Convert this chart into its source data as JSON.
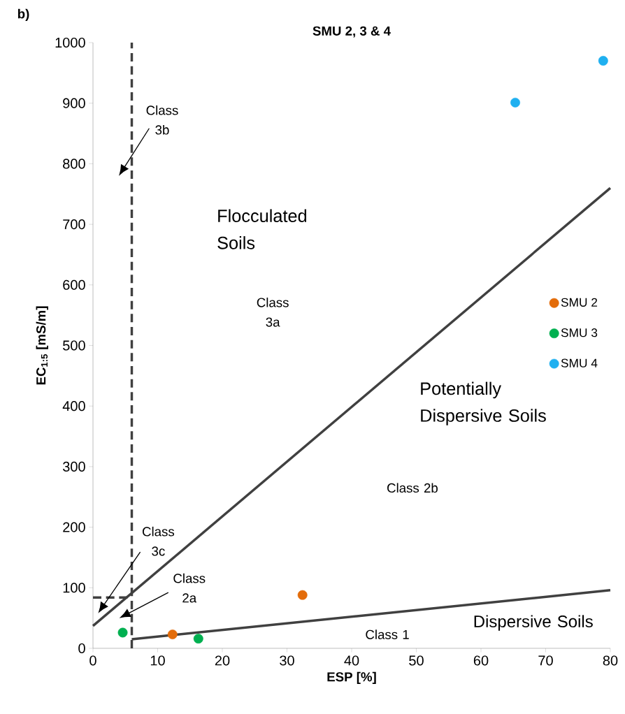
{
  "chart_data": {
    "type": "scatter",
    "title": "SMU 2, 3 & 4",
    "xlabel": "ESP [%]",
    "ylabel": "EC$_{1:5}$ [mS/m]",
    "xlim": [
      0,
      80
    ],
    "ylim": [
      0,
      1000
    ],
    "xticks": [
      0,
      10,
      20,
      30,
      40,
      50,
      60,
      70,
      80
    ],
    "yticks": [
      0,
      100,
      200,
      300,
      400,
      500,
      600,
      700,
      800,
      900,
      1000
    ],
    "grid": false,
    "legend": "right",
    "series": [
      {
        "name": "SMU 2",
        "color": "#e36c0a",
        "x": [
          12.3,
          32.4
        ],
        "values": [
          23,
          88
        ],
        "marker": "circle"
      },
      {
        "name": "SMU 3",
        "color": "#00b050",
        "x": [
          4.6,
          16.3
        ],
        "values": [
          26,
          16
        ],
        "marker": "circle"
      },
      {
        "name": "SMU 4",
        "color": "#1fb0f0",
        "x": [
          65.3,
          78.9
        ],
        "values": [
          901,
          970
        ],
        "marker": "circle"
      },
      {
        "type": "line",
        "color": "#404040",
        "x": [
          0,
          80
        ],
        "values": [
          37,
          760
        ],
        "line_style": "solid",
        "marker": "none"
      },
      {
        "type": "line",
        "color": "#404040",
        "x": [
          6,
          80
        ],
        "values": [
          15,
          96
        ],
        "line_style": "solid",
        "marker": "none"
      },
      {
        "type": "line",
        "color": "#404040",
        "x": [
          0,
          6
        ],
        "values": [
          84,
          84
        ],
        "line_style": "dashed",
        "marker": "none"
      }
    ],
    "ref_lines": [
      {
        "axis": "x",
        "value": 6,
        "color": "#404040",
        "line_style": "dashed"
      }
    ],
    "annotations": [
      "b)",
      "Flocculated Soils",
      "Class 3a",
      "Potentially Dispersive Soils",
      "Class 2b",
      "Dispersive Soils",
      "Class 1",
      "Class 3b",
      "Class 3c",
      "Class 2a"
    ]
  }
}
